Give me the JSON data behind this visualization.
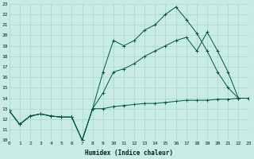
{
  "xlabel": "Humidex (Indice chaleur)",
  "bg_color": "#c8ebe6",
  "grid_color": "#a8d5cc",
  "line_color": "#005544",
  "xlim": [
    0,
    23
  ],
  "ylim": [
    10,
    23
  ],
  "xticks": [
    0,
    1,
    2,
    3,
    4,
    5,
    6,
    7,
    8,
    9,
    10,
    11,
    12,
    13,
    14,
    15,
    16,
    17,
    18,
    19,
    20,
    21,
    22,
    23
  ],
  "yticks": [
    10,
    11,
    12,
    13,
    14,
    15,
    16,
    17,
    18,
    19,
    20,
    21,
    22,
    23
  ],
  "curve_max_x": [
    0,
    1,
    2,
    3,
    4,
    5,
    6,
    7,
    8,
    9,
    10,
    11,
    12,
    13,
    14,
    15,
    16,
    17,
    18,
    19,
    20,
    21,
    22
  ],
  "curve_max_y": [
    12.8,
    11.5,
    12.3,
    12.5,
    12.3,
    12.2,
    12.2,
    10.0,
    13.0,
    16.5,
    19.5,
    19.0,
    19.5,
    20.5,
    21.0,
    22.0,
    22.7,
    21.5,
    20.2,
    18.5,
    16.5,
    15.0,
    14.0
  ],
  "curve_mean_x": [
    0,
    1,
    2,
    3,
    4,
    5,
    6,
    7,
    8,
    9,
    10,
    11,
    12,
    13,
    14,
    15,
    16,
    17,
    18,
    19,
    20,
    21,
    22
  ],
  "curve_mean_y": [
    12.8,
    11.5,
    12.3,
    12.5,
    12.3,
    12.2,
    12.2,
    10.0,
    13.0,
    14.5,
    16.5,
    16.8,
    17.3,
    18.0,
    18.5,
    19.0,
    19.5,
    19.8,
    18.5,
    20.3,
    18.5,
    16.5,
    14.0
  ],
  "curve_min_x": [
    0,
    1,
    2,
    3,
    4,
    5,
    6,
    7,
    8,
    9,
    10,
    11,
    12,
    13,
    14,
    15,
    16,
    17,
    18,
    19,
    20,
    21,
    22,
    23
  ],
  "curve_min_y": [
    12.8,
    11.5,
    12.3,
    12.5,
    12.3,
    12.2,
    12.2,
    10.0,
    13.0,
    13.0,
    13.2,
    13.3,
    13.4,
    13.5,
    13.5,
    13.6,
    13.7,
    13.8,
    13.8,
    13.8,
    13.9,
    13.9,
    14.0,
    14.0
  ]
}
